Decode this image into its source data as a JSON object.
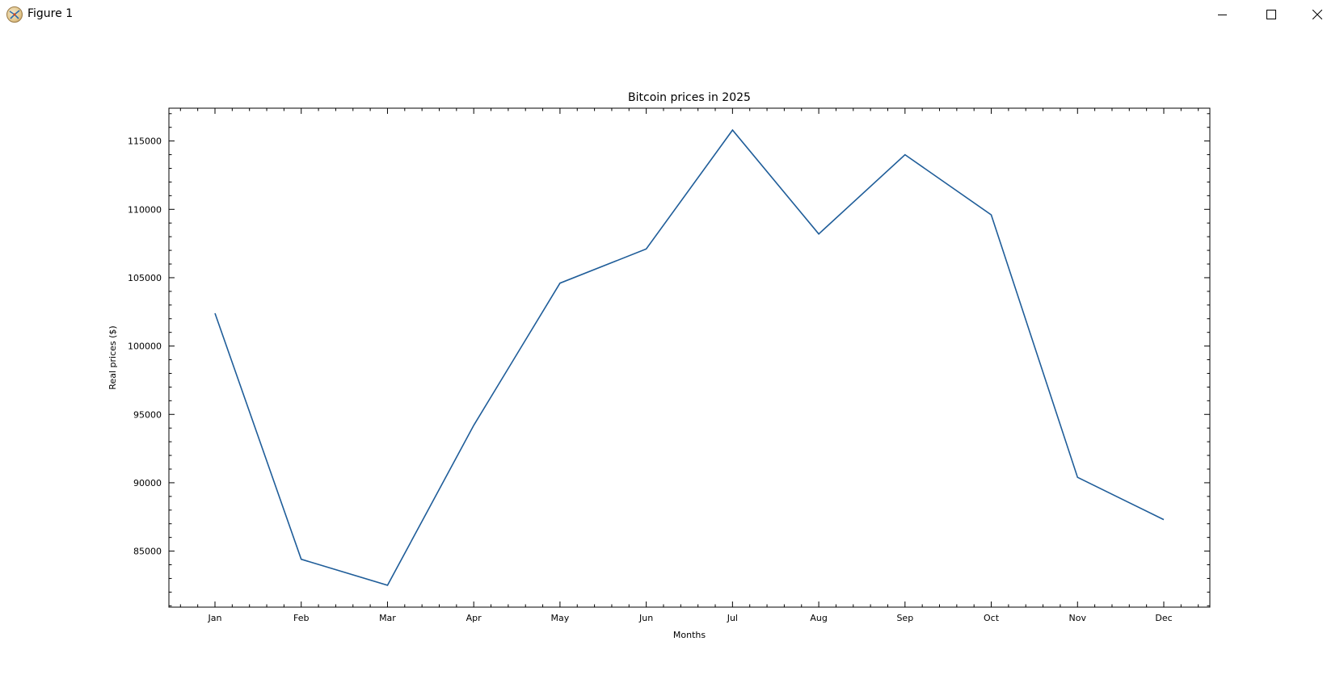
{
  "window": {
    "title": "Figure 1",
    "icons": {
      "app": "matplotlib-app-icon",
      "minimize": "minimize-icon",
      "maximize": "maximize-icon",
      "close": "close-icon"
    }
  },
  "chart_data": {
    "type": "line",
    "title": "Bitcoin prices in 2025",
    "xlabel": "Months",
    "ylabel": "Real prices ($)",
    "categories": [
      "Jan",
      "Feb",
      "Mar",
      "Apr",
      "May",
      "Jun",
      "Jul",
      "Aug",
      "Sep",
      "Oct",
      "Nov",
      "Dec"
    ],
    "series": [
      {
        "values": [
          102400,
          84400,
          82500,
          94200,
          104600,
          107100,
          115800,
          108200,
          114000,
          109600,
          90400,
          87300
        ],
        "color": "#1f5d99"
      }
    ],
    "ylim": [
      80900,
      117400
    ],
    "yticks": [
      85000,
      90000,
      95000,
      100000,
      105000,
      110000,
      115000
    ],
    "ytick_labels": [
      "85000",
      "90000",
      "95000",
      "100000",
      "105000",
      "110000",
      "115000"
    ],
    "grid": false,
    "tick_direction": "in",
    "minor_ticks": true,
    "ticks_all_sides": true
  }
}
